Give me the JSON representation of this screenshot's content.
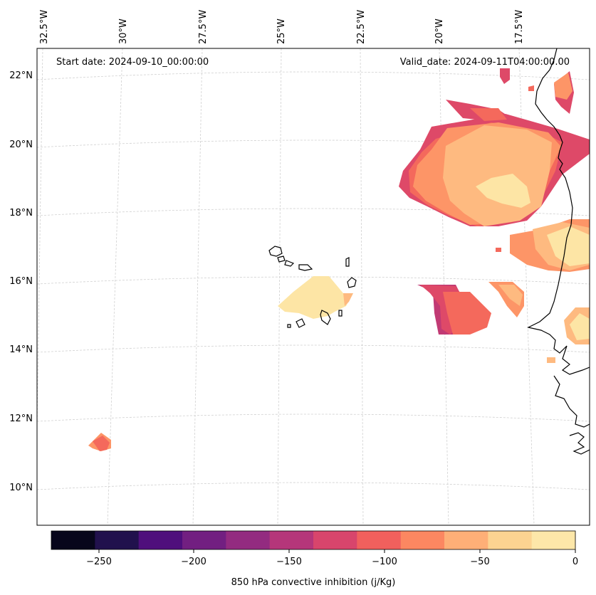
{
  "map": {
    "start_date_text": "Start date: 2024-09-10_00:00:00",
    "valid_date_text": "Valid_date: 2024-09-11T04:00:00.00",
    "lon_labels": [
      "32.5°W",
      "30°W",
      "27.5°W",
      "25°W",
      "22.5°W",
      "20°W",
      "17.5°W"
    ],
    "lat_labels": [
      "22°N",
      "20°N",
      "18°N",
      "16°N",
      "14°N",
      "12°N",
      "10°N"
    ],
    "colors": {
      "coastline": "#000000",
      "gridline": "#d0d0d0",
      "frame": "#000000"
    },
    "field_palette": {
      "-25_0": "#fde5a5",
      "-50_-25": "#feba80",
      "-75_-50": "#fd9567",
      "-100_-75": "#f4695c",
      "-125_-100": "#de4968",
      "-150_-125": "#c13a74"
    }
  },
  "colorbar": {
    "label": "850 hPa convective inhibition (j/Kg)",
    "tick_labels": [
      "−250",
      "−200",
      "−150",
      "−100",
      "−50",
      "0"
    ],
    "colors": [
      "#07061b",
      "#21114d",
      "#4f0f7c",
      "#721f81",
      "#932b80",
      "#b5367a",
      "#d8456c",
      "#f1605d",
      "#fc8761",
      "#feaf77",
      "#fcd391",
      "#fde7a9"
    ]
  }
}
